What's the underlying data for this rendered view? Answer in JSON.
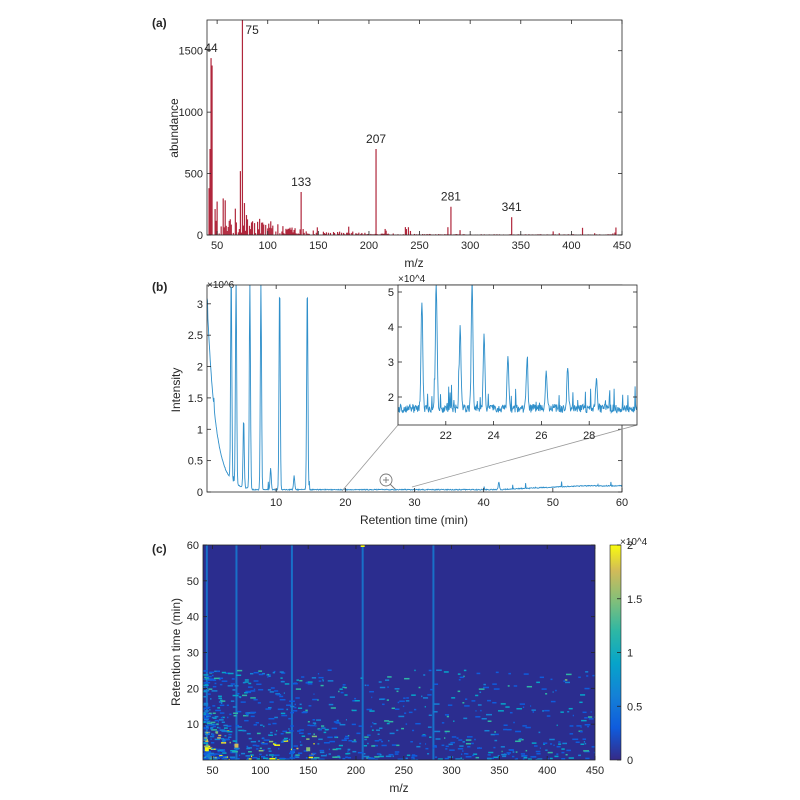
{
  "chart_data": [
    {
      "panel": "(a)",
      "type": "bar",
      "xlabel": "m/z",
      "ylabel": "abundance",
      "xlim": [
        40,
        450
      ],
      "ylim": [
        0,
        1750
      ],
      "xticks": [
        "50",
        "100",
        "150",
        "200",
        "250",
        "300",
        "350",
        "400",
        "450"
      ],
      "yticks": [
        "0",
        "500",
        "1000",
        "1500"
      ],
      "color": "#b0273c",
      "grid": false,
      "peaks": [
        {
          "x": 44,
          "y": 1440
        },
        {
          "x": 45,
          "y": 1380
        },
        {
          "x": 43,
          "y": 700
        },
        {
          "x": 75,
          "y": 1750
        },
        {
          "x": 73,
          "y": 520
        },
        {
          "x": 77,
          "y": 260
        },
        {
          "x": 133,
          "y": 350
        },
        {
          "x": 207,
          "y": 700
        },
        {
          "x": 281,
          "y": 230
        },
        {
          "x": 341,
          "y": 145
        }
      ],
      "labels": [
        {
          "x": 44,
          "y": 1440,
          "text": "44"
        },
        {
          "x": 75,
          "y": 1750,
          "text": "75"
        },
        {
          "x": 133,
          "y": 350,
          "text": "133"
        },
        {
          "x": 207,
          "y": 700,
          "text": "207"
        },
        {
          "x": 281,
          "y": 230,
          "text": "281"
        },
        {
          "x": 341,
          "y": 145,
          "text": "341"
        }
      ]
    },
    {
      "panel": "(b)",
      "type": "line",
      "xlabel": "Retention time (min)",
      "ylabel": "Intensity",
      "exponent": "×10^6",
      "xlim": [
        0,
        60
      ],
      "ylim": [
        0,
        3.3
      ],
      "xticks": [
        "10",
        "20",
        "30",
        "40",
        "50",
        "60"
      ],
      "yticks": [
        "0",
        "0.5",
        "1",
        "1.5",
        "2",
        "2.5",
        "3"
      ],
      "color": "#2f8fca",
      "grid": false,
      "peaks": [
        {
          "x": 3.5,
          "y": 3.3
        },
        {
          "x": 4.2,
          "y": 3.3
        },
        {
          "x": 6.2,
          "y": 3.3
        },
        {
          "x": 7.8,
          "y": 3.3
        },
        {
          "x": 10.5,
          "y": 3.3
        },
        {
          "x": 14.5,
          "y": 3.3
        },
        {
          "x": 5.3,
          "y": 1.1
        },
        {
          "x": 9.2,
          "y": 0.35
        },
        {
          "x": 12.6,
          "y": 0.22
        },
        {
          "x": 42.2,
          "y": 0.12
        }
      ],
      "inset": {
        "exponent": "×10^4",
        "xlim": [
          20,
          30
        ],
        "ylim": [
          1.2,
          5.2
        ],
        "xticks": [
          "22",
          "24",
          "26",
          "28"
        ],
        "yticks": [
          "2",
          "3",
          "4",
          "5"
        ],
        "peaks": [
          {
            "x": 21.0,
            "y": 4.6
          },
          {
            "x": 21.6,
            "y": 5.2
          },
          {
            "x": 22.6,
            "y": 3.9
          },
          {
            "x": 23.1,
            "y": 5.2
          },
          {
            "x": 23.6,
            "y": 3.6
          },
          {
            "x": 24.6,
            "y": 3.0
          },
          {
            "x": 25.4,
            "y": 3.0
          },
          {
            "x": 26.2,
            "y": 2.6
          },
          {
            "x": 27.1,
            "y": 2.7
          },
          {
            "x": 28.3,
            "y": 2.5
          }
        ]
      }
    },
    {
      "panel": "(c)",
      "type": "heatmap",
      "xlabel": "m/z",
      "ylabel": "Retention time (min)",
      "xlim": [
        40,
        450
      ],
      "ylim": [
        0,
        60
      ],
      "xticks": [
        "50",
        "100",
        "150",
        "200",
        "250",
        "300",
        "350",
        "400",
        "450"
      ],
      "yticks": [
        "10",
        "20",
        "30",
        "40",
        "50",
        "60"
      ],
      "colorbar": {
        "exponent": "×10^4",
        "range": [
          0,
          2
        ],
        "ticks": [
          "0",
          "0.5",
          "1",
          "1.5",
          "2"
        ]
      },
      "background": "#2b2d8f",
      "streaks_mz": [
        44,
        75,
        133,
        207,
        281
      ],
      "hot_spots": [
        {
          "mz": 44,
          "rt": 3,
          "v": 2.0
        },
        {
          "mz": 75,
          "rt": 4,
          "v": 1.8
        },
        {
          "mz": 150,
          "rt": 3,
          "v": 1.5
        },
        {
          "mz": 207,
          "rt": 60,
          "v": 2.0
        }
      ]
    }
  ]
}
